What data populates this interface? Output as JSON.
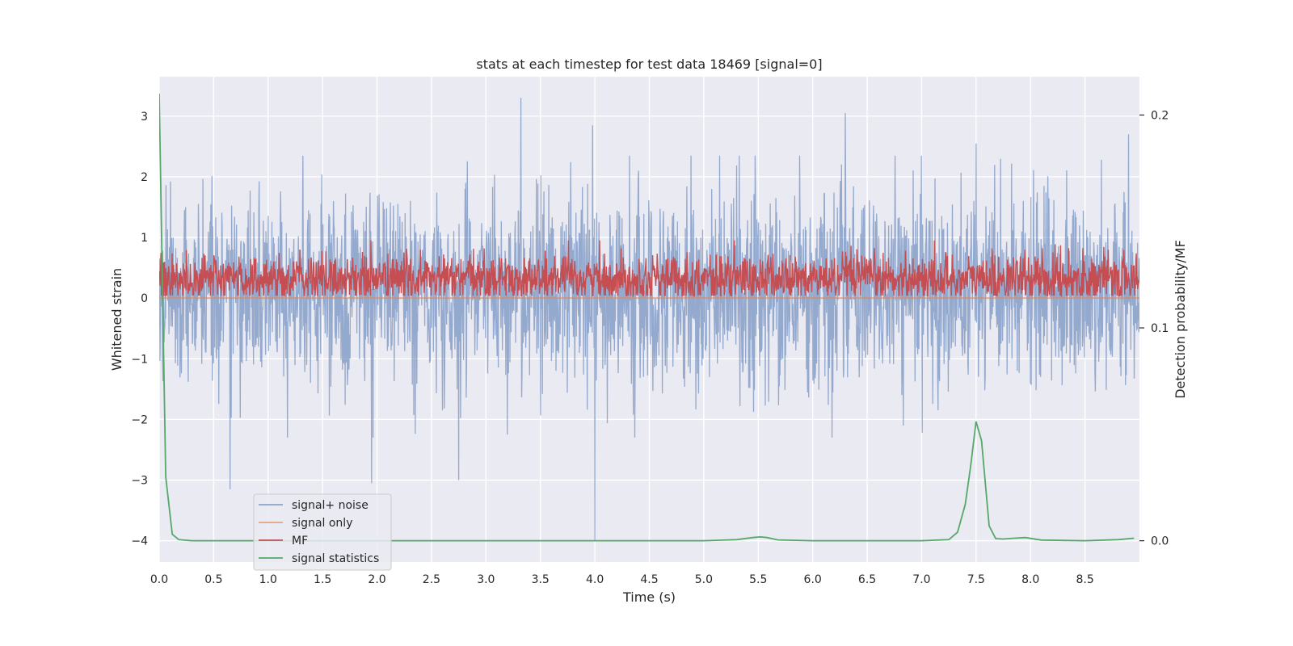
{
  "chart_data": {
    "type": "line",
    "title": "stats at each timestep for test data 18469 [signal=0]",
    "xlabel": "Time (s)",
    "ylabel_left": "Whitened strain",
    "ylabel_right": "Detection probability/MF",
    "xlim": [
      0.0,
      9.0
    ],
    "ylim_left": [
      -4.35,
      3.65
    ],
    "ylim_right": [
      -0.01,
      0.218
    ],
    "x_ticks": [
      0.0,
      0.5,
      1.0,
      1.5,
      2.0,
      2.5,
      3.0,
      3.5,
      4.0,
      4.5,
      5.0,
      5.5,
      6.0,
      6.5,
      7.0,
      7.5,
      8.0,
      8.5
    ],
    "x_tick_labels": [
      "0.0",
      "0.5",
      "1.0",
      "1.5",
      "2.0",
      "2.5",
      "3.0",
      "3.5",
      "4.0",
      "4.5",
      "5.0",
      "5.5",
      "6.0",
      "6.5",
      "7.0",
      "7.5",
      "8.0",
      "8.5"
    ],
    "y_left_ticks": [
      3,
      2,
      1,
      0,
      -1,
      -2,
      -3,
      -4
    ],
    "y_left_tick_labels": [
      "3",
      "2",
      "1",
      "0",
      "−1",
      "−2",
      "−3",
      "−4"
    ],
    "y_right_ticks": [
      0.2,
      0.1,
      0.0
    ],
    "y_right_tick_labels": [
      "0.2",
      "0.1",
      "0.0"
    ],
    "grid": true,
    "legend_placement": "lower-left",
    "colors": {
      "signal_noise": "#4c72b0",
      "signal_only": "#dd8452",
      "mf": "#c44e52",
      "signal_statistics": "#55a868",
      "plot_bg": "#eaeaf2",
      "grid": "#ffffff"
    },
    "series": [
      {
        "name": "signal+ noise",
        "axis": "left",
        "note_envelope": "dense noise approx -1.8 to 2.3 with spikes",
        "x": [
          0.65,
          1.95,
          2.75,
          3.32,
          3.98,
          4.0,
          6.3,
          7.5,
          8.9
        ],
        "values": [
          -3.15,
          -3.05,
          -3.0,
          3.3,
          2.85,
          -4.0,
          3.05,
          2.55,
          2.7
        ]
      },
      {
        "name": "signal only",
        "axis": "left",
        "x": [
          0.0,
          9.0
        ],
        "values": [
          0.0,
          0.0
        ]
      },
      {
        "name": "MF",
        "axis": "left",
        "note_envelope": "dense trace approx 0.05 to 0.9",
        "x": [
          0.0,
          9.0
        ],
        "values": [
          0.3,
          0.3
        ]
      },
      {
        "name": "signal statistics",
        "axis": "right",
        "x": [
          0.0,
          0.03,
          0.06,
          0.12,
          0.18,
          0.3,
          1.0,
          2.0,
          3.0,
          4.0,
          5.0,
          5.3,
          5.45,
          5.52,
          5.58,
          5.68,
          6.0,
          6.5,
          7.0,
          7.25,
          7.33,
          7.4,
          7.45,
          7.5,
          7.55,
          7.62,
          7.68,
          7.75,
          7.85,
          7.95,
          8.1,
          8.5,
          8.8,
          8.95
        ],
        "values": [
          0.21,
          0.12,
          0.03,
          0.003,
          0.0005,
          0.0,
          0.0,
          0.0,
          0.0,
          0.0,
          0.0,
          0.0005,
          0.0015,
          0.0018,
          0.0015,
          0.0004,
          0.0,
          0.0,
          0.0,
          0.0005,
          0.004,
          0.017,
          0.035,
          0.056,
          0.047,
          0.007,
          0.001,
          0.0008,
          0.0012,
          0.0015,
          0.0003,
          0.0,
          0.0005,
          0.0012
        ]
      }
    ]
  }
}
